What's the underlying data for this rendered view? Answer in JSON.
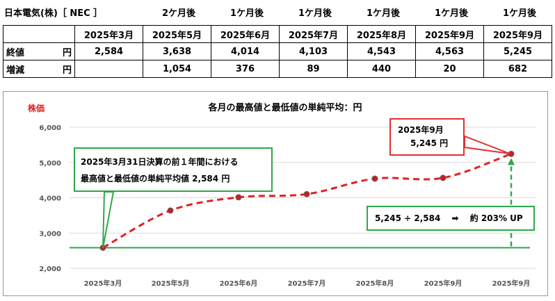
{
  "table": {
    "title": "日本電気(株)［ NEC ］",
    "headers": [
      "2ケ月後",
      "1ケ月後",
      "1ケ月後",
      "1ケ月後",
      "1ケ月後",
      "1ケ月後"
    ],
    "months": [
      "2025年3月",
      "2025年5月",
      "2025年6月",
      "2025年7月",
      "2025年8月",
      "2025年9月",
      "2025年9月"
    ],
    "row1_label": "終値",
    "row1_unit": "円",
    "row1": [
      "2,584",
      "3,638",
      "4,014",
      "4,103",
      "4,543",
      "4,563",
      "5,245"
    ],
    "row2_label": "増減",
    "row2_unit": "円",
    "row2": [
      "",
      "1,054",
      "376",
      "89",
      "440",
      "20",
      "682"
    ]
  },
  "chart_data": {
    "type": "line",
    "title": "各月の最高値と最低値の単純平均：円",
    "ylabel": "株価",
    "categories": [
      "2025年3月",
      "2025年5月",
      "2025年6月",
      "2025年7月",
      "2025年8月",
      "2025年9月",
      "2025年9月"
    ],
    "values": [
      2584,
      3638,
      4014,
      4103,
      4543,
      4563,
      5245
    ],
    "ylim": [
      2000,
      6000
    ],
    "yticks": [
      "2,000",
      "3,000",
      "4,000",
      "5,000",
      "6,000"
    ],
    "baseline": 2584,
    "grid": true,
    "line_color": "#e02020",
    "baseline_color": "#2ea84a"
  },
  "callouts": {
    "start_line1": "2025年3月31日決算の前１年間における",
    "start_line2": "最高値と最低値の単純平均値 2,584 円",
    "end_line1": "2025年9月",
    "end_line2": "5,245 円",
    "ratio": "5,245 ÷ 2,584　 ➡　 約 203% UP"
  }
}
